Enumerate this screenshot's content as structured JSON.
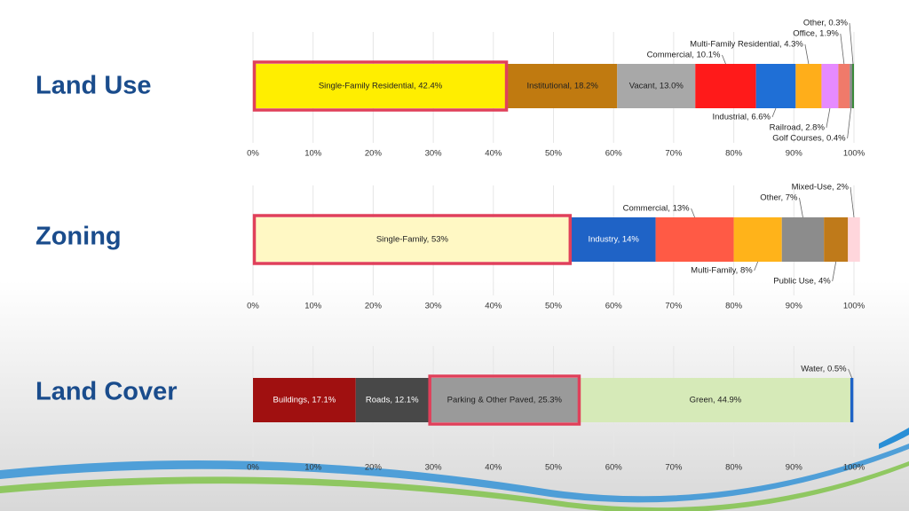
{
  "chart_data": [
    {
      "type": "stacked_bar",
      "title": "Land Use",
      "xlim": [
        0,
        100
      ],
      "grid": true,
      "xticks": [
        {
          "value": 0,
          "label": "0%"
        },
        {
          "value": 10,
          "label": "10%"
        },
        {
          "value": 20,
          "label": "20%"
        },
        {
          "value": 30,
          "label": "30%"
        },
        {
          "value": 40,
          "label": "40%"
        },
        {
          "value": 50,
          "label": "50%"
        },
        {
          "value": 60,
          "label": "60%"
        },
        {
          "value": 70,
          "label": "70%"
        },
        {
          "value": 80,
          "label": "80%"
        },
        {
          "value": 90,
          "label": "90%"
        },
        {
          "value": 100,
          "label": "100%"
        }
      ],
      "series": [
        {
          "name": "Single-Family Residential",
          "values": [
            42.4
          ],
          "value_labels": [
            "Single-Family Residential, 42.4%"
          ],
          "color": "#ffee00",
          "label": "inside",
          "highlight": true
        },
        {
          "name": "Institutional",
          "values": [
            18.2
          ],
          "value_labels": [
            "Institutional, 18.2%"
          ],
          "color": "#c07a10",
          "label": "inside"
        },
        {
          "name": "Vacant",
          "values": [
            13.0
          ],
          "value_labels": [
            "Vacant, 13.0%"
          ],
          "color": "#a8a8a8",
          "label": "inside"
        },
        {
          "name": "Commercial",
          "values": [
            10.1
          ],
          "value_labels": [
            "Commercial, 10.1%"
          ],
          "color": "#ff1a1a",
          "label": "above"
        },
        {
          "name": "Industrial",
          "values": [
            6.6
          ],
          "value_labels": [
            "Industrial, 6.6%"
          ],
          "color": "#1f6fd6",
          "label": "below"
        },
        {
          "name": "Multi-Family Residential",
          "values": [
            4.3
          ],
          "value_labels": [
            "Multi-Family Residential, 4.3%"
          ],
          "color": "#ffae1a",
          "label": "above"
        },
        {
          "name": "Railroad",
          "values": [
            2.8
          ],
          "value_labels": [
            "Railroad, 2.8%"
          ],
          "color": "#e68aff",
          "label": "below"
        },
        {
          "name": "Office",
          "values": [
            1.9
          ],
          "value_labels": [
            "Office, 1.9%"
          ],
          "color": "#f07a6a",
          "label": "above"
        },
        {
          "name": "Golf Courses",
          "values": [
            0.4
          ],
          "value_labels": [
            "Golf Courses, 0.4%"
          ],
          "color": "#8a8a8a",
          "label": "below"
        },
        {
          "name": "Other",
          "values": [
            0.3
          ],
          "value_labels": [
            "Other, 0.3%"
          ],
          "color": "#3a8a3a",
          "label": "above"
        }
      ]
    },
    {
      "type": "stacked_bar",
      "title": "Zoning",
      "xlim": [
        0,
        100
      ],
      "grid": true,
      "xticks": [
        {
          "value": 0,
          "label": "0%"
        },
        {
          "value": 10,
          "label": "10%"
        },
        {
          "value": 20,
          "label": "20%"
        },
        {
          "value": 30,
          "label": "30%"
        },
        {
          "value": 40,
          "label": "40%"
        },
        {
          "value": 50,
          "label": "50%"
        },
        {
          "value": 60,
          "label": "60%"
        },
        {
          "value": 70,
          "label": "70%"
        },
        {
          "value": 80,
          "label": "80%"
        },
        {
          "value": 90,
          "label": "90%"
        },
        {
          "value": 100,
          "label": "100%"
        }
      ],
      "series": [
        {
          "name": "Single-Family",
          "values": [
            53
          ],
          "value_labels": [
            "Single-Family, 53%"
          ],
          "color": "#fff8c4",
          "label": "inside",
          "highlight": true
        },
        {
          "name": "Industry",
          "values": [
            14
          ],
          "value_labels": [
            "Industry, 14%"
          ],
          "color": "#1f63c6",
          "label": "inside"
        },
        {
          "name": "Commercial",
          "values": [
            13
          ],
          "value_labels": [
            "Commercial, 13%"
          ],
          "color": "#ff5a45",
          "label": "above"
        },
        {
          "name": "Multi-Family",
          "values": [
            8
          ],
          "value_labels": [
            "Multi-Family, 8%"
          ],
          "color": "#ffb31a",
          "label": "below"
        },
        {
          "name": "Other",
          "values": [
            7
          ],
          "value_labels": [
            "Other, 7%"
          ],
          "color": "#8c8c8c",
          "label": "above"
        },
        {
          "name": "Public Use",
          "values": [
            4
          ],
          "value_labels": [
            "Public Use, 4%"
          ],
          "color": "#bf7a1a",
          "label": "below"
        },
        {
          "name": "Mixed-Use",
          "values": [
            2
          ],
          "value_labels": [
            "Mixed-Use, 2%"
          ],
          "color": "#ffd6dc",
          "label": "above"
        }
      ]
    },
    {
      "type": "stacked_bar",
      "title": "Land Cover",
      "xlim": [
        0,
        100
      ],
      "grid": true,
      "xticks": [
        {
          "value": 0,
          "label": "0%"
        },
        {
          "value": 10,
          "label": "10%"
        },
        {
          "value": 20,
          "label": "20%"
        },
        {
          "value": 30,
          "label": "30%"
        },
        {
          "value": 40,
          "label": "40%"
        },
        {
          "value": 50,
          "label": "50%"
        },
        {
          "value": 60,
          "label": "60%"
        },
        {
          "value": 70,
          "label": "70%"
        },
        {
          "value": 80,
          "label": "80%"
        },
        {
          "value": 90,
          "label": "90%"
        },
        {
          "value": 100,
          "label": "100%"
        }
      ],
      "series": [
        {
          "name": "Buildings",
          "values": [
            17.1
          ],
          "value_labels": [
            "Buildings, 17.1%"
          ],
          "color": "#a01010",
          "label": "inside"
        },
        {
          "name": "Roads",
          "values": [
            12.1
          ],
          "value_labels": [
            "Roads, 12.1%"
          ],
          "color": "#484848",
          "label": "inside"
        },
        {
          "name": "Parking & Other Paved",
          "values": [
            25.3
          ],
          "value_labels": [
            "Parking & Other Paved, 25.3%"
          ],
          "color": "#9a9a9a",
          "label": "inside",
          "highlight": true
        },
        {
          "name": "Green",
          "values": [
            44.9
          ],
          "value_labels": [
            "Green, 44.9%"
          ],
          "color": "#d6eab8",
          "label": "inside"
        },
        {
          "name": "Water",
          "values": [
            0.5
          ],
          "value_labels": [
            "Water, 0.5%"
          ],
          "color": "#1f63c6",
          "label": "above"
        }
      ]
    }
  ]
}
